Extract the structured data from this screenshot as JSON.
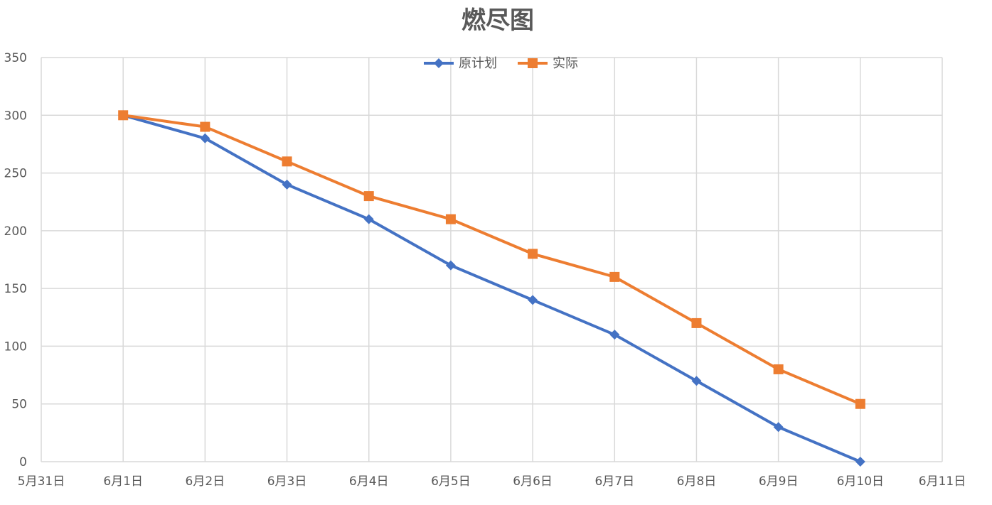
{
  "chart_data": {
    "type": "line",
    "title": "燃尽图",
    "x": [
      "5月31日",
      "6月1日",
      "6月2日",
      "6月3日",
      "6月4日",
      "6月5日",
      "6月6日",
      "6月7日",
      "6月8日",
      "6月9日",
      "6月10日",
      "6月11日"
    ],
    "xlabel": "",
    "ylabel": "",
    "ylim": [
      0,
      350
    ],
    "yticks": [
      0,
      50,
      100,
      150,
      200,
      250,
      300,
      350
    ],
    "grid": true,
    "legend_position": "top",
    "series": [
      {
        "name": "原计划",
        "color": "#4472C4",
        "marker": "diamond",
        "x": [
          "6月1日",
          "6月2日",
          "6月3日",
          "6月4日",
          "6月5日",
          "6月6日",
          "6月7日",
          "6月8日",
          "6月9日",
          "6月10日"
        ],
        "values": [
          300,
          280,
          240,
          210,
          170,
          140,
          110,
          70,
          30,
          0
        ]
      },
      {
        "name": "实际",
        "color": "#ED7D31",
        "marker": "square",
        "x": [
          "6月1日",
          "6月2日",
          "6月3日",
          "6月4日",
          "6月5日",
          "6月6日",
          "6月7日",
          "6月8日",
          "6月9日",
          "6月10日"
        ],
        "values": [
          300,
          290,
          260,
          230,
          210,
          180,
          160,
          120,
          80,
          50
        ]
      }
    ]
  }
}
